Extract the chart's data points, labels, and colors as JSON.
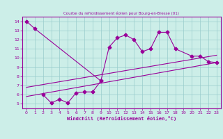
{
  "title": "Courbe du refroidissement éolien pour Bourg-en-Bresse (01)",
  "xlabel": "Windchill (Refroidissement éolien,°C)",
  "bg_color": "#cceee8",
  "line_color": "#990099",
  "grid_color": "#99cccc",
  "xlim": [
    -0.5,
    23.5
  ],
  "ylim": [
    4.5,
    14.5
  ],
  "xticks": [
    0,
    1,
    2,
    3,
    4,
    5,
    6,
    7,
    8,
    9,
    10,
    11,
    12,
    13,
    14,
    15,
    16,
    17,
    18,
    19,
    20,
    21,
    22,
    23
  ],
  "yticks": [
    5,
    6,
    7,
    8,
    9,
    10,
    11,
    12,
    13,
    14
  ],
  "series1_x": [
    0,
    1,
    9,
    10,
    11,
    12,
    13,
    14,
    15,
    16,
    17,
    18,
    20,
    21,
    22,
    23
  ],
  "series1_y": [
    14.0,
    13.2,
    7.5,
    11.2,
    12.2,
    12.5,
    12.0,
    10.7,
    11.0,
    12.8,
    12.8,
    11.0,
    10.2,
    10.2,
    9.6,
    9.5
  ],
  "series2_x": [
    2,
    3,
    4,
    5,
    6,
    7,
    8,
    9
  ],
  "series2_y": [
    6.0,
    5.1,
    5.5,
    5.1,
    6.2,
    6.3,
    6.3,
    7.5
  ],
  "line3_x": [
    0,
    23
  ],
  "line3_y": [
    5.8,
    9.5
  ],
  "line4_x": [
    0,
    23
  ],
  "line4_y": [
    6.8,
    10.3
  ]
}
